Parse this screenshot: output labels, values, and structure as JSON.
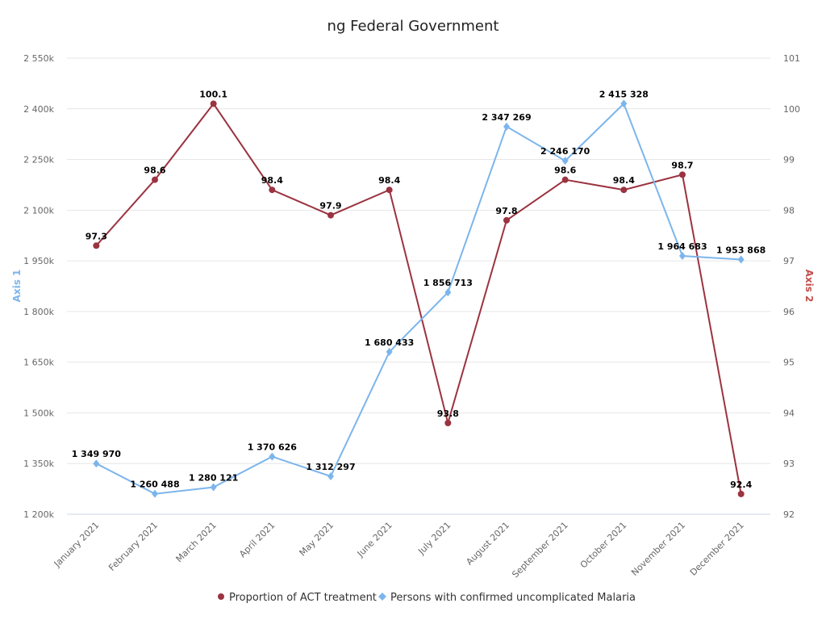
{
  "chart_data": {
    "type": "line",
    "title": "ng Federal Government",
    "categories": [
      "January 2021",
      "February 2021",
      "March 2021",
      "April 2021",
      "May 2021",
      "June 2021",
      "July 2021",
      "August 2021",
      "September 2021",
      "October 2021",
      "November 2021",
      "December 2021"
    ],
    "left_axis": {
      "label": "Axis 1",
      "color": "#7cb5ec",
      "ylim": [
        1200000,
        2550000
      ],
      "ticks": [
        1200000,
        1350000,
        1500000,
        1650000,
        1800000,
        1950000,
        2100000,
        2250000,
        2400000,
        2550000
      ],
      "tick_labels": [
        "1 200k",
        "1 350k",
        "1 500k",
        "1 650k",
        "1 800k",
        "1 950k",
        "2 100k",
        "2 250k",
        "2 400k",
        "2 550k"
      ]
    },
    "right_axis": {
      "label": "Axis 2",
      "color": "#c0504d",
      "ylim": [
        92,
        101
      ],
      "ticks": [
        92,
        93,
        94,
        95,
        96,
        97,
        98,
        99,
        100,
        101
      ],
      "tick_labels": [
        "92",
        "93",
        "94",
        "95",
        "96",
        "97",
        "98",
        "99",
        "100",
        "101"
      ]
    },
    "grid": true,
    "legend_position": "bottom-center",
    "series": [
      {
        "name": "Proportion of ACT treatment",
        "axis": "right",
        "color": "#9b3340",
        "marker": "circle",
        "values": [
          97.3,
          98.6,
          100.1,
          98.4,
          97.9,
          98.4,
          93.8,
          97.8,
          98.6,
          98.4,
          98.7,
          92.4
        ],
        "labels": [
          "97.3",
          "98.6",
          "100.1",
          "98.4",
          "97.9",
          "98.4",
          "93.8",
          "97.8",
          "98.6",
          "98.4",
          "98.7",
          "92.4"
        ]
      },
      {
        "name": "Persons with confirmed uncomplicated Malaria",
        "axis": "left",
        "color": "#7cb5ec",
        "marker": "diamond",
        "values": [
          1349970,
          1260488,
          1280121,
          1370626,
          1312297,
          1680433,
          1856713,
          2347269,
          2246170,
          2415328,
          1964683,
          1953868
        ],
        "labels": [
          "1 349 970",
          "1 260 488",
          "1 280 121",
          "1 370 626",
          "1 312 297",
          "1 680 433",
          "1 856 713",
          "2 347 269",
          "2 246 170",
          "2 415 328",
          "1 964 683",
          "1 953 868"
        ]
      }
    ]
  }
}
